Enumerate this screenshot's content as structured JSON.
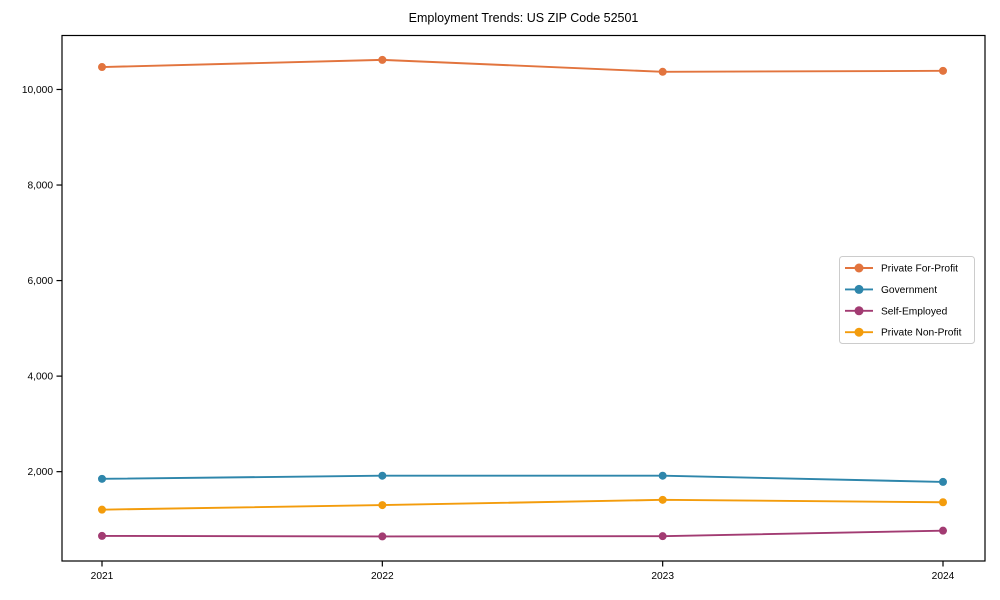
{
  "chart_data": {
    "type": "line",
    "title": "Employment Trends: US ZIP Code 52501",
    "x_labels": [
      "2021",
      "2022",
      "2023",
      "2024"
    ],
    "series": [
      {
        "name": "Private For-Profit",
        "slug": "private-for-profit",
        "color": "#E2743E",
        "values": [
          10470,
          10620,
          10370,
          10390
        ]
      },
      {
        "name": "Government",
        "slug": "government",
        "color": "#2E86AB",
        "values": [
          1850,
          1915,
          1915,
          1785
        ]
      },
      {
        "name": "Self-Employed",
        "slug": "self-employed",
        "color": "#A23B72",
        "values": [
          655,
          645,
          650,
          765
        ]
      },
      {
        "name": "Private Non-Profit",
        "slug": "private-non-profit",
        "color": "#F39C0C",
        "values": [
          1205,
          1300,
          1410,
          1360
        ]
      }
    ],
    "y_ticks": [
      2000,
      4000,
      6000,
      8000,
      10000
    ],
    "y_tick_labels": [
      "2,000",
      "4,000",
      "6,000",
      "8,000",
      "10,000"
    ],
    "ylim": [
      130,
      11130
    ],
    "grid": false,
    "legend_position": "center-right",
    "marker": "circle",
    "axis_color": "#000000",
    "background_color": "#ffffff",
    "legend_border_color": "#cccccc"
  }
}
